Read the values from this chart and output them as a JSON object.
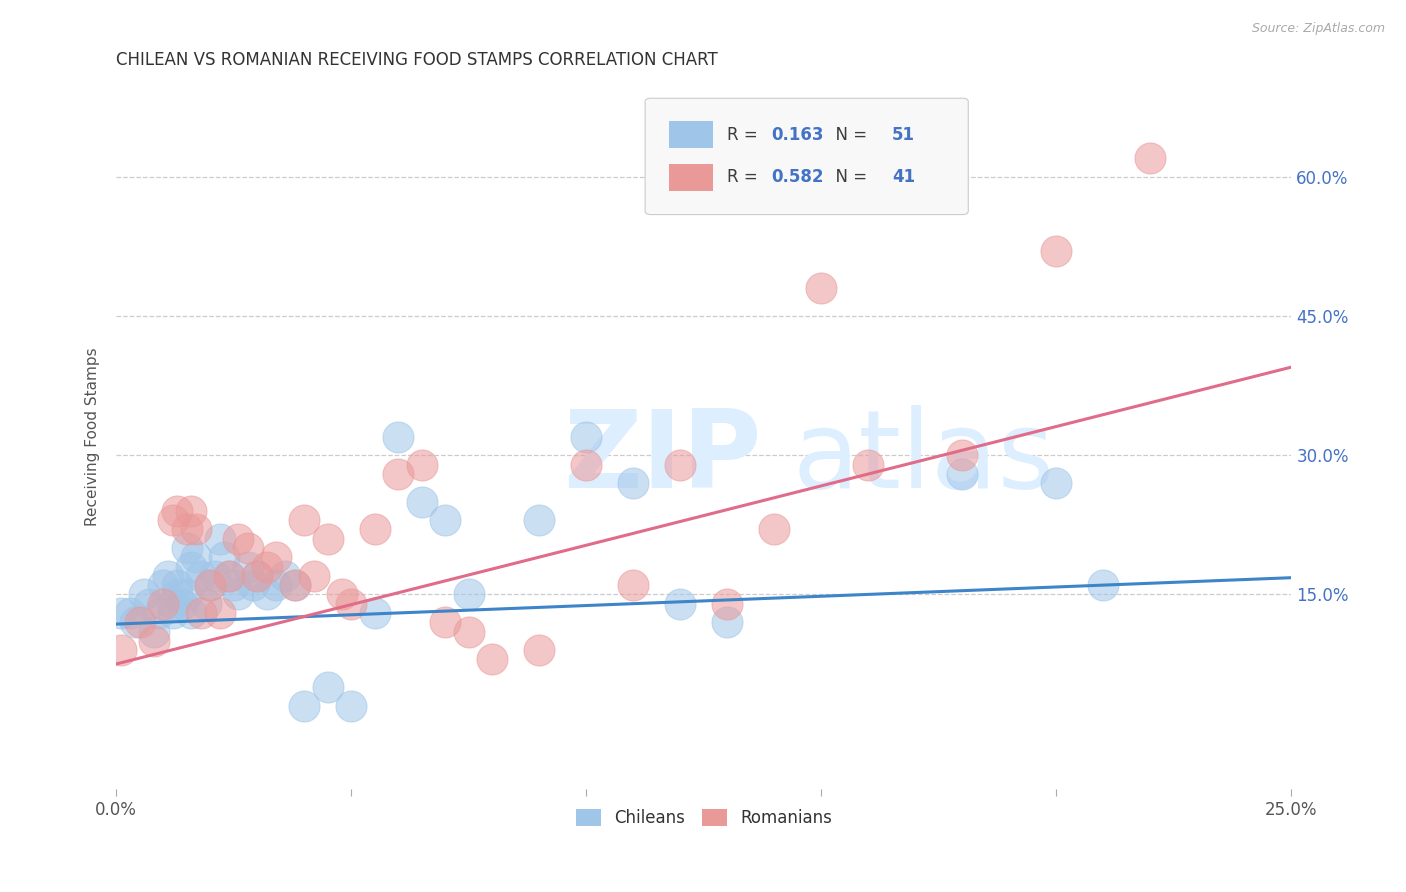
{
  "title": "CHILEAN VS ROMANIAN RECEIVING FOOD STAMPS CORRELATION CHART",
  "source": "Source: ZipAtlas.com",
  "ylabel": "Receiving Food Stamps",
  "ytick_labels": [
    "15.0%",
    "30.0%",
    "45.0%",
    "60.0%"
  ],
  "ytick_values": [
    0.15,
    0.3,
    0.45,
    0.6
  ],
  "xlim": [
    0.0,
    0.25
  ],
  "ylim": [
    -0.06,
    0.7
  ],
  "chilean_color": "#9fc5e8",
  "romanian_color": "#ea9999",
  "chilean_line_color": "#3d85c8",
  "romanian_line_color": "#e06c8a",
  "legend_R_chilean": "0.163",
  "legend_N_chilean": "51",
  "legend_R_romanian": "0.582",
  "legend_N_romanian": "41",
  "background_color": "#ffffff",
  "chilean_scatter_x": [
    0.001,
    0.003,
    0.004,
    0.006,
    0.007,
    0.008,
    0.009,
    0.01,
    0.011,
    0.012,
    0.012,
    0.013,
    0.013,
    0.014,
    0.015,
    0.015,
    0.016,
    0.016,
    0.017,
    0.018,
    0.019,
    0.02,
    0.021,
    0.022,
    0.023,
    0.024,
    0.025,
    0.026,
    0.028,
    0.029,
    0.03,
    0.032,
    0.034,
    0.036,
    0.038,
    0.04,
    0.045,
    0.05,
    0.055,
    0.06,
    0.065,
    0.07,
    0.075,
    0.09,
    0.1,
    0.11,
    0.12,
    0.13,
    0.18,
    0.2,
    0.21
  ],
  "chilean_scatter_y": [
    0.13,
    0.13,
    0.12,
    0.15,
    0.14,
    0.11,
    0.13,
    0.16,
    0.17,
    0.13,
    0.14,
    0.15,
    0.16,
    0.14,
    0.15,
    0.2,
    0.18,
    0.13,
    0.19,
    0.17,
    0.14,
    0.16,
    0.17,
    0.21,
    0.19,
    0.17,
    0.16,
    0.15,
    0.18,
    0.16,
    0.17,
    0.15,
    0.16,
    0.17,
    0.16,
    0.03,
    0.05,
    0.03,
    0.13,
    0.32,
    0.25,
    0.23,
    0.15,
    0.23,
    0.32,
    0.27,
    0.14,
    0.12,
    0.28,
    0.27,
    0.16
  ],
  "romanian_scatter_x": [
    0.001,
    0.005,
    0.008,
    0.01,
    0.012,
    0.013,
    0.015,
    0.016,
    0.017,
    0.018,
    0.02,
    0.022,
    0.024,
    0.026,
    0.028,
    0.03,
    0.032,
    0.034,
    0.038,
    0.04,
    0.042,
    0.045,
    0.048,
    0.05,
    0.055,
    0.06,
    0.065,
    0.07,
    0.075,
    0.08,
    0.09,
    0.1,
    0.11,
    0.12,
    0.13,
    0.14,
    0.15,
    0.16,
    0.18,
    0.2,
    0.22
  ],
  "romanian_scatter_y": [
    0.09,
    0.12,
    0.1,
    0.14,
    0.23,
    0.24,
    0.22,
    0.24,
    0.22,
    0.13,
    0.16,
    0.13,
    0.17,
    0.21,
    0.2,
    0.17,
    0.18,
    0.19,
    0.16,
    0.23,
    0.17,
    0.21,
    0.15,
    0.14,
    0.22,
    0.28,
    0.29,
    0.12,
    0.11,
    0.08,
    0.09,
    0.29,
    0.16,
    0.29,
    0.14,
    0.22,
    0.48,
    0.29,
    0.3,
    0.52,
    0.62
  ],
  "chilean_trend_x": [
    0.0,
    0.25
  ],
  "chilean_trend_y": [
    0.118,
    0.168
  ],
  "romanian_trend_x": [
    0.0,
    0.25
  ],
  "romanian_trend_y": [
    0.075,
    0.395
  ]
}
